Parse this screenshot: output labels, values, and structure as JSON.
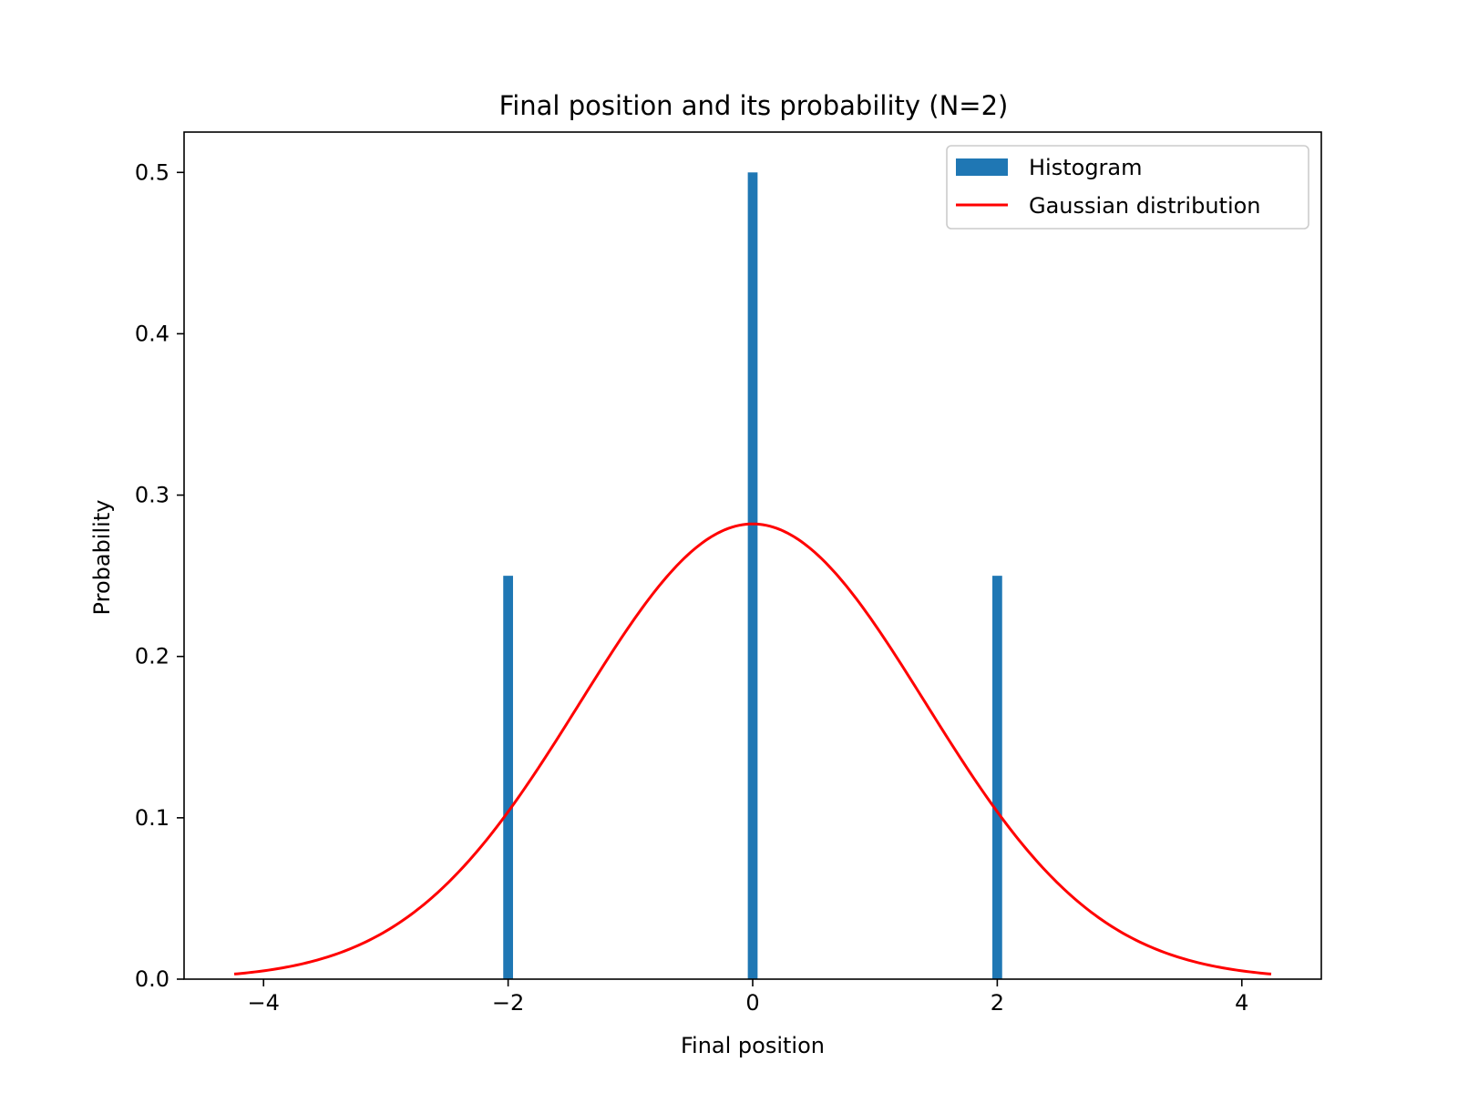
{
  "chart_data": {
    "type": "bar",
    "title": "Final position and its probability (N=2)",
    "xlabel": "Final position",
    "ylabel": "Probability",
    "xlim": [
      -4.65,
      4.65
    ],
    "ylim": [
      0.0,
      0.525
    ],
    "x_ticks": [
      -4,
      -2,
      0,
      2,
      4
    ],
    "x_tick_labels": [
      "−4",
      "−2",
      "0",
      "2",
      "4"
    ],
    "y_ticks": [
      0.0,
      0.1,
      0.2,
      0.3,
      0.4,
      0.5
    ],
    "y_tick_labels": [
      "0.0",
      "0.1",
      "0.2",
      "0.3",
      "0.4",
      "0.5"
    ],
    "grid": false,
    "legend_position": "top-right",
    "series": [
      {
        "name": "Histogram",
        "kind": "bar",
        "color": "#1f77b4",
        "bar_width": 0.08,
        "x": [
          -2,
          0,
          2
        ],
        "values": [
          0.25,
          0.5,
          0.25
        ]
      },
      {
        "name": "Gaussian distribution",
        "kind": "line",
        "color": "#ff0000",
        "x_range": [
          -4.24,
          4.24
        ],
        "mean": 0,
        "std": 1.414
      }
    ]
  }
}
